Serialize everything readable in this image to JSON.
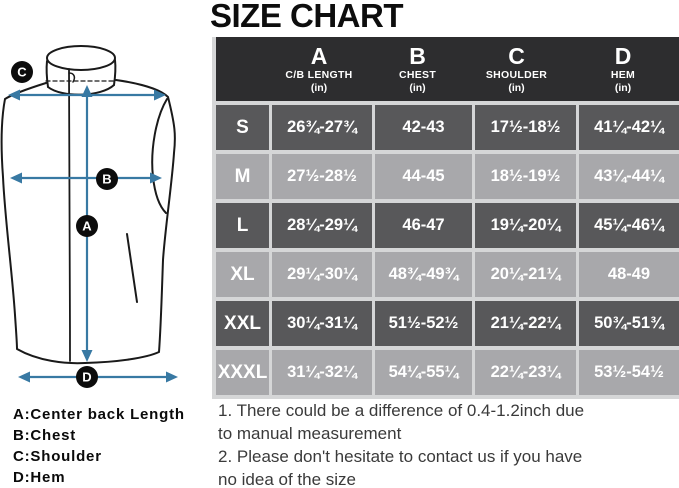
{
  "title": "SIZE CHART",
  "colors": {
    "accent_blue": "#3879a3",
    "header_bg": "#2d2d2f",
    "row_dark": "#58585a",
    "row_light": "#a8a8ab",
    "separator": "#d5d6d7",
    "title_color": "#0d0d0d",
    "note_color": "#3a3a3a",
    "outline": "#1a1a1a",
    "marker_bg": "#0c0c0c"
  },
  "diagram": {
    "markers": [
      "A",
      "B",
      "C",
      "D"
    ],
    "legend": [
      "A:Center back Length",
      "B:Chest",
      "C:Shoulder",
      "D:Hem"
    ]
  },
  "table": {
    "columns": [
      {
        "letter": "A",
        "name": "C/B LENGTH",
        "unit": "(in)"
      },
      {
        "letter": "B",
        "name": "CHEST",
        "unit": "(in)"
      },
      {
        "letter": "C",
        "name": "SHOULDER",
        "unit": "(in)"
      },
      {
        "letter": "D",
        "name": "HEM",
        "unit": "(in)"
      }
    ],
    "rows": [
      {
        "size": "S",
        "values": [
          "26¾-27¾",
          "42-43",
          "17½-18½",
          "41¼-42¼"
        ]
      },
      {
        "size": "M",
        "values": [
          "27½-28½",
          "44-45",
          "18½-19½",
          "43¼-44¼"
        ]
      },
      {
        "size": "L",
        "values": [
          "28¼-29¼",
          "46-47",
          "19¼-20¼",
          "45¼-46¼"
        ]
      },
      {
        "size": "XL",
        "values": [
          "29¼-30¼",
          "48¾-49¾",
          "20¼-21¼",
          "48-49"
        ]
      },
      {
        "size": "XXL",
        "values": [
          "30¼-31¼",
          "51½-52½",
          "21¼-22¼",
          "50¾-51¾"
        ]
      },
      {
        "size": "XXXL",
        "values": [
          "31¼-32¼",
          "54¼-55¼",
          "22¼-23¼",
          "53½-54½"
        ]
      }
    ]
  },
  "notes": [
    "1. There could be a difference of 0.4-1.2inch due to manual measurement",
    "2. Please don't hesitate to contact us if you have no idea of the size"
  ]
}
